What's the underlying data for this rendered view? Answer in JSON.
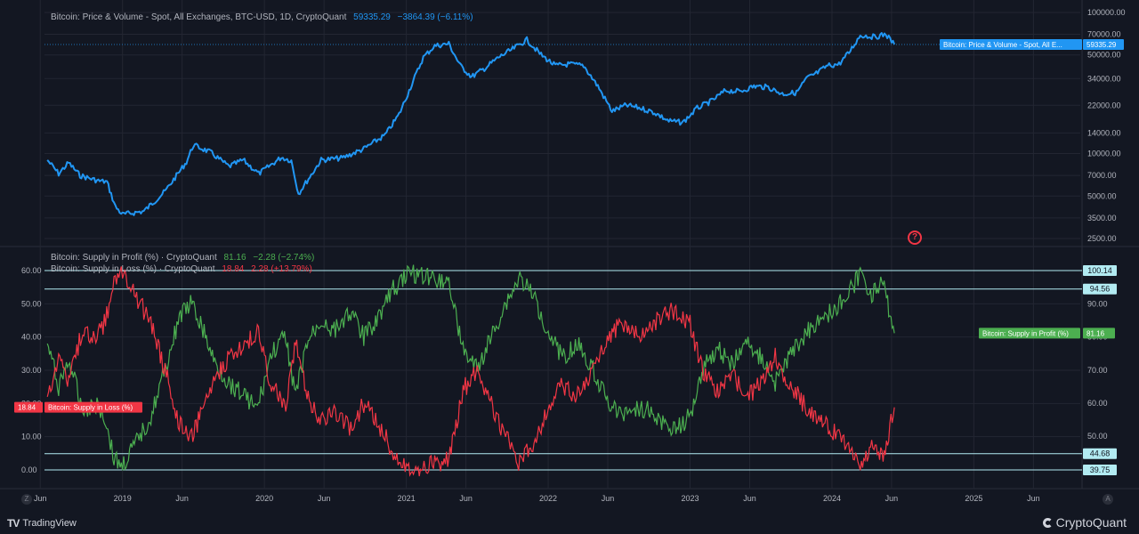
{
  "chart_data": [
    {
      "type": "line",
      "title": "Bitcoin: Price & Volume - Spot, All Exchanges, BTC-USD, 1D, CryptoQuant",
      "scale": "log",
      "header": {
        "value": "59335.29",
        "change": "−3864.39 (−6.11%)"
      },
      "ylim": [
        2500,
        100000
      ],
      "y_ticks": [
        "100000.00",
        "70000.00",
        "50000.00",
        "34000.00",
        "22000.00",
        "14000.00",
        "10000.00",
        "7000.00",
        "5000.00",
        "3500.00",
        "2500.00"
      ],
      "series": [
        {
          "name": "Bitcoin: Price & Volume - Spot, All E...",
          "color": "#2196f3",
          "last_value": "59335.29",
          "x": [
            2018.47,
            2018.55,
            2018.62,
            2018.7,
            2018.83,
            2018.89,
            2018.95,
            2019.0,
            2019.15,
            2019.3,
            2019.45,
            2019.5,
            2019.62,
            2019.75,
            2019.85,
            2019.96,
            2020.12,
            2020.19,
            2020.24,
            2020.4,
            2020.55,
            2020.7,
            2020.85,
            2020.95,
            2021.05,
            2021.12,
            2021.2,
            2021.3,
            2021.38,
            2021.46,
            2021.55,
            2021.65,
            2021.75,
            2021.85,
            2021.95,
            2022.05,
            2022.15,
            2022.25,
            2022.35,
            2022.45,
            2022.55,
            2022.65,
            2022.75,
            2022.85,
            2022.95,
            2023.05,
            2023.15,
            2023.25,
            2023.35,
            2023.45,
            2023.55,
            2023.65,
            2023.75,
            2023.82,
            2023.9,
            2023.97,
            2024.05,
            2024.12,
            2024.2,
            2024.3,
            2024.38,
            2024.44
          ],
          "values": [
            9000,
            7200,
            8600,
            7000,
            6400,
            6300,
            4200,
            3700,
            3900,
            5400,
            8700,
            11500,
            10200,
            8100,
            9000,
            7200,
            9400,
            8900,
            5200,
            9000,
            9300,
            10800,
            13500,
            19000,
            33000,
            48000,
            58000,
            60000,
            42000,
            35000,
            40000,
            48000,
            55000,
            64000,
            50000,
            42000,
            43000,
            42000,
            30000,
            20000,
            22000,
            21000,
            19500,
            17000,
            16600,
            21000,
            23500,
            28000,
            27500,
            30000,
            29500,
            26500,
            27000,
            34000,
            37500,
            42000,
            43000,
            52000,
            69000,
            67000,
            70000,
            59335
          ]
        }
      ]
    },
    {
      "type": "line",
      "title": "Bitcoin: Supply in Profit (%) · CryptoQuant",
      "left_axis_ticks": [
        "60.00",
        "50.00",
        "40.00",
        "30.00",
        "20.00",
        "10.00",
        "0.00"
      ],
      "right_axis_ticks": [
        "90.00",
        "80.00",
        "70.00",
        "60.00",
        "50.00"
      ],
      "ylim_left": [
        0,
        60
      ],
      "ylim_right": [
        39.75,
        100.14
      ],
      "legend": [
        {
          "label": "Bitcoin: Supply in Profit (%) · CryptoQuant",
          "value": "81.16",
          "change": "−2.28 (−2.74%)",
          "color": "#4caf50"
        },
        {
          "label": "Bitcoin: Supply in Loss (%) · CryptoQuant",
          "value": "18.84",
          "change": "2.28 (+13.79%)",
          "color": "#f23645"
        }
      ],
      "horizontal_lines": [
        {
          "label": "100.14",
          "value": 100.14
        },
        {
          "label": "94.56",
          "value": 94.56
        },
        {
          "label": "44.68",
          "value": 44.68
        },
        {
          "label": "39.75",
          "value": 39.75
        }
      ],
      "series": [
        {
          "name": "Bitcoin: Supply in Profit (%)",
          "color": "#4caf50",
          "last_value": "81.16",
          "x": [
            2018.47,
            2018.55,
            2018.62,
            2018.72,
            2018.82,
            2018.88,
            2018.94,
            2019.0,
            2019.1,
            2019.2,
            2019.3,
            2019.4,
            2019.48,
            2019.55,
            2019.65,
            2019.75,
            2019.85,
            2019.95,
            2020.05,
            2020.15,
            2020.22,
            2020.3,
            2020.4,
            2020.5,
            2020.6,
            2020.7,
            2020.8,
            2020.9,
            2021.0,
            2021.1,
            2021.2,
            2021.3,
            2021.4,
            2021.5,
            2021.6,
            2021.7,
            2021.8,
            2021.9,
            2022.0,
            2022.1,
            2022.2,
            2022.3,
            2022.4,
            2022.5,
            2022.6,
            2022.7,
            2022.8,
            2022.9,
            2023.0,
            2023.1,
            2023.2,
            2023.3,
            2023.4,
            2023.5,
            2023.6,
            2023.7,
            2023.8,
            2023.9,
            2024.0,
            2024.1,
            2024.2,
            2024.28,
            2024.36,
            2024.44
          ],
          "values": [
            78,
            65,
            73,
            58,
            60,
            55,
            43,
            41,
            48,
            56,
            70,
            86,
            90,
            84,
            72,
            66,
            63,
            58,
            75,
            80,
            62,
            78,
            85,
            82,
            88,
            80,
            86,
            94,
            99,
            99,
            98,
            97,
            76,
            70,
            80,
            90,
            98,
            92,
            82,
            74,
            78,
            72,
            62,
            56,
            59,
            58,
            54,
            52,
            56,
            72,
            76,
            72,
            78,
            74,
            66,
            74,
            80,
            85,
            88,
            92,
            99,
            93,
            96,
            81.16
          ]
        },
        {
          "name": "Bitcoin: Supply in Loss (%)",
          "color": "#f23645",
          "last_value": "18.84",
          "x": [
            2018.47,
            2018.55,
            2018.62,
            2018.72,
            2018.82,
            2018.88,
            2018.94,
            2019.0,
            2019.1,
            2019.2,
            2019.3,
            2019.4,
            2019.48,
            2019.55,
            2019.65,
            2019.75,
            2019.85,
            2019.95,
            2020.05,
            2020.15,
            2020.22,
            2020.3,
            2020.4,
            2020.5,
            2020.6,
            2020.7,
            2020.8,
            2020.9,
            2021.0,
            2021.1,
            2021.2,
            2021.3,
            2021.4,
            2021.5,
            2021.6,
            2021.7,
            2021.8,
            2021.9,
            2022.0,
            2022.1,
            2022.2,
            2022.3,
            2022.4,
            2022.5,
            2022.6,
            2022.7,
            2022.8,
            2022.9,
            2023.0,
            2023.1,
            2023.2,
            2023.3,
            2023.4,
            2023.5,
            2023.6,
            2023.7,
            2023.8,
            2023.9,
            2024.0,
            2024.1,
            2024.2,
            2024.28,
            2024.36,
            2024.44
          ],
          "values": [
            22,
            35,
            27,
            42,
            40,
            45,
            57,
            59,
            52,
            44,
            30,
            14,
            10,
            16,
            28,
            34,
            37,
            42,
            25,
            20,
            38,
            22,
            15,
            18,
            12,
            20,
            14,
            6,
            1,
            1,
            2,
            3,
            24,
            30,
            20,
            10,
            2,
            8,
            18,
            26,
            22,
            28,
            38,
            44,
            41,
            42,
            46,
            48,
            44,
            28,
            24,
            28,
            22,
            26,
            34,
            26,
            20,
            15,
            12,
            8,
            1,
            7,
            4,
            18.84
          ]
        }
      ]
    }
  ],
  "x_axis": {
    "labels": [
      "Jun",
      "2019",
      "Jun",
      "2020",
      "Jun",
      "2021",
      "Jun",
      "2022",
      "Jun",
      "2023",
      "Jun",
      "2024",
      "Jun",
      "2025",
      "Jun"
    ],
    "label_x": [
      2018.42,
      2019.0,
      2019.42,
      2020.0,
      2020.42,
      2021.0,
      2021.42,
      2022.0,
      2022.42,
      2023.0,
      2023.42,
      2024.0,
      2024.42,
      2025.0,
      2025.42
    ]
  },
  "labels": {
    "price_label": "Bitcoin: Price & Volume - Spot, All E...",
    "price_value": "59335.29",
    "profit_label": "Bitcoin: Supply in Profit (%)",
    "profit_value": "81.16",
    "loss_label": "Bitcoin: Supply in Loss (%)",
    "loss_value": "18.84"
  },
  "buttons": {
    "z": "Z",
    "a": "A"
  },
  "warning_icon": "?",
  "footer": {
    "left_logo_mark": "TV",
    "left_logo": "TradingView",
    "right_logo": "CryptoQuant"
  },
  "colors": {
    "background": "#131722",
    "grid": "#232632",
    "blue": "#2196f3",
    "green": "#4caf50",
    "red": "#f23645",
    "hline": "#b2ebf2"
  }
}
